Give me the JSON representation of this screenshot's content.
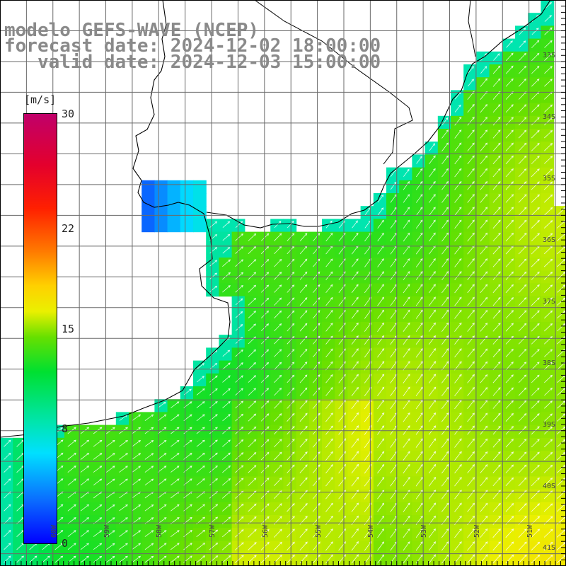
{
  "header": {
    "model_line": "modelo GEFS-WAVE (NCEP)",
    "forecast_line": "forecast date: 2024-12-02 18:00:00",
    "valid_line": "   valid date: 2024-12-03 15:00:00"
  },
  "colorbar": {
    "unit": "[m/s]",
    "min": 0,
    "max": 30,
    "tick_labels": [
      "30",
      "22",
      "15",
      "8",
      "0"
    ],
    "colors": [
      "#0000ff",
      "#0a6cff",
      "#00e0ff",
      "#00e5b0",
      "#00e030",
      "#66e000",
      "#eaf000",
      "#ffd000",
      "#ff7a00",
      "#ff2000",
      "#e4002c",
      "#c0006a"
    ]
  },
  "map": {
    "lat_labels": [
      "33S",
      "34S",
      "35S",
      "36S",
      "37S",
      "38S",
      "39S",
      "40S",
      "41S"
    ],
    "lon_labels": [
      "60W",
      "59W",
      "58W",
      "57W",
      "56W",
      "55W",
      "54W",
      "53W",
      "52W",
      "51W"
    ],
    "extent": {
      "lon_min": -61.0,
      "lon_max": -50.3,
      "lat_min": -41.2,
      "lat_max": -32.0
    }
  }
}
